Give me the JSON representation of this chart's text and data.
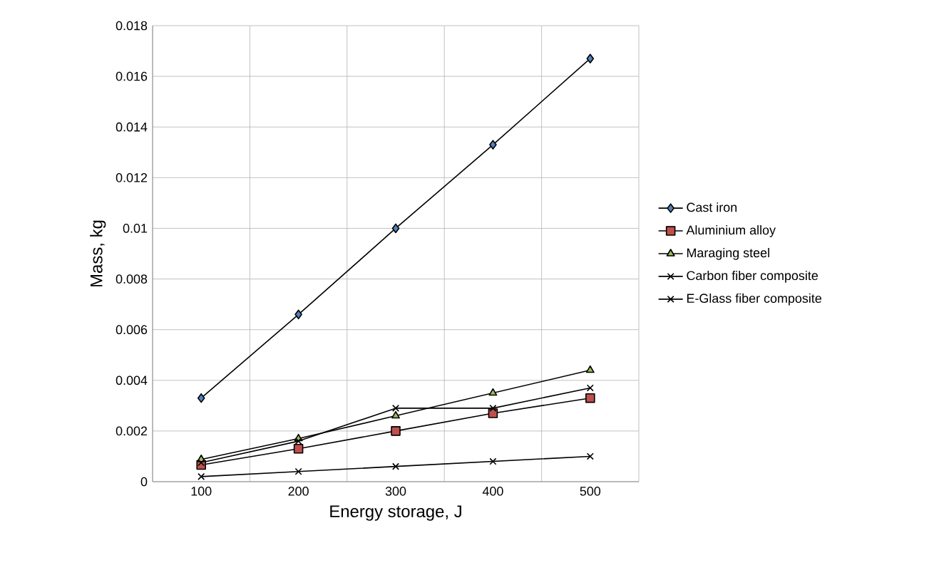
{
  "chart_data": {
    "type": "line",
    "xlabel": "Energy storage, J",
    "ylabel": "Mass, kg",
    "categories": [
      "100",
      "200",
      "300",
      "400",
      "500"
    ],
    "series": [
      {
        "name": "Cast iron",
        "color": "#4f81bd",
        "marker": "diamond",
        "values": [
          0.0033,
          0.0066,
          0.01,
          0.0133,
          0.0167
        ]
      },
      {
        "name": "Aluminium alloy",
        "color": "#c0504d",
        "marker": "square",
        "values": [
          0.00066,
          0.0013,
          0.002,
          0.0027,
          0.0033
        ]
      },
      {
        "name": "Maraging steel",
        "color": "#9bbb59",
        "marker": "triangle",
        "values": [
          0.00088,
          0.0017,
          0.0026,
          0.0035,
          0.0044
        ]
      },
      {
        "name": "Carbon fiber composite",
        "color": "#000000",
        "marker": "cross",
        "values": [
          0.0002,
          0.0004,
          0.0006,
          0.0008,
          0.001
        ]
      },
      {
        "name": "E-Glass fiber composite",
        "color": "#000000",
        "marker": "cross",
        "values": [
          0.00075,
          0.0016,
          0.0029,
          0.0029,
          0.0037
        ]
      }
    ],
    "ylim": [
      0,
      0.018
    ],
    "yticks": [
      0,
      0.002,
      0.004,
      0.006,
      0.008,
      0.01,
      0.012,
      0.014,
      0.016,
      0.018
    ],
    "grid": true,
    "legend": "right",
    "line_style": "solid"
  }
}
